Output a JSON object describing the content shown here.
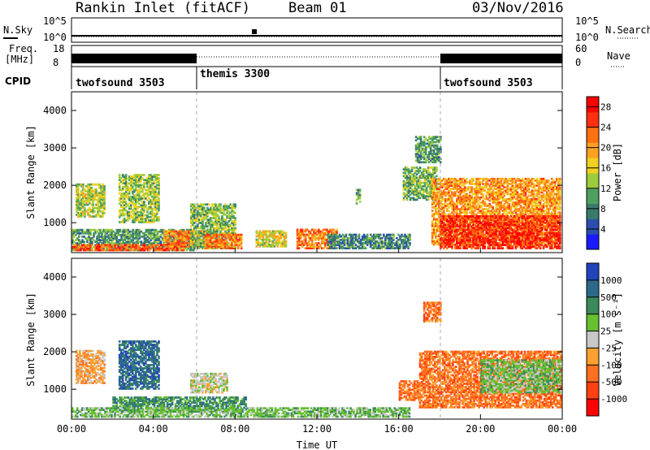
{
  "header": {
    "title": "Rankin Inlet (fitACF)",
    "beam": "Beam 01",
    "date": "03/Nov/2016"
  },
  "noise_panel": {
    "left_label": "N.Sky",
    "right_label": "N.Search",
    "ticks": [
      "10^0",
      "10^5"
    ]
  },
  "freq_panel": {
    "left_label_1": "Freq.",
    "left_label_2": "[MHz]",
    "right_label": "Nave",
    "left_ticks": [
      "8",
      "18"
    ],
    "right_ticks": [
      "0",
      "60"
    ]
  },
  "cpid": {
    "label": "CPID",
    "modes": [
      "twofsound 3503",
      "themis 3300",
      "twofsound 3503"
    ],
    "mode_start_hours": [
      0,
      6,
      18
    ]
  },
  "chart_data": [
    {
      "type": "heatmap",
      "quantity": "power",
      "xlabel": "",
      "ylabel": "Slant Range [km]",
      "x_ticks": [
        "00:00",
        "04:00",
        "08:00",
        "12:00",
        "16:00",
        "20:00",
        "00:00"
      ],
      "xlim_hours": [
        0,
        24
      ],
      "y_ticks": [
        1000,
        2000,
        3000,
        4000
      ],
      "ylim": [
        200,
        4500
      ],
      "colorbar": {
        "label": "Power [dB]",
        "ticks": [
          4,
          8,
          12,
          16,
          20,
          24,
          28
        ],
        "range": [
          0,
          30
        ],
        "colors": [
          "#1a1aff",
          "#2b4fb0",
          "#3a7a6a",
          "#4fa060",
          "#9ccc3c",
          "#f0d020",
          "#ffa020",
          "#ff7010",
          "#ff3010",
          "#ff0000"
        ]
      },
      "echo_regions": [
        {
          "t0": 0.2,
          "t1": 1.6,
          "r0": 1150,
          "r1": 2050,
          "level": 14
        },
        {
          "t0": 2.3,
          "t1": 4.3,
          "r0": 1000,
          "r1": 2300,
          "level": 13
        },
        {
          "t0": 0.0,
          "t1": 6.0,
          "r0": 250,
          "r1": 800,
          "level": 10
        },
        {
          "t0": 0.0,
          "t1": 5.5,
          "r0": 250,
          "r1": 400,
          "level": 24
        },
        {
          "t0": 4.5,
          "t1": 6.8,
          "r0": 350,
          "r1": 800,
          "level": 22
        },
        {
          "t0": 5.8,
          "t1": 8.0,
          "r0": 300,
          "r1": 1500,
          "level": 12
        },
        {
          "t0": 6.5,
          "t1": 8.3,
          "r0": 300,
          "r1": 700,
          "level": 22
        },
        {
          "t0": 9.0,
          "t1": 10.5,
          "r0": 350,
          "r1": 800,
          "level": 16
        },
        {
          "t0": 11.0,
          "t1": 13.0,
          "r0": 300,
          "r1": 800,
          "level": 22
        },
        {
          "t0": 12.5,
          "t1": 16.5,
          "r0": 300,
          "r1": 700,
          "level": 8
        },
        {
          "t0": 13.9,
          "t1": 14.1,
          "r0": 1500,
          "r1": 1900,
          "level": 10
        },
        {
          "t0": 16.2,
          "t1": 17.8,
          "r0": 1600,
          "r1": 2500,
          "level": 12
        },
        {
          "t0": 16.8,
          "t1": 18.0,
          "r0": 2600,
          "r1": 3300,
          "level": 10
        },
        {
          "t0": 17.6,
          "t1": 23.9,
          "r0": 400,
          "r1": 2200,
          "level": 20
        },
        {
          "t0": 18.0,
          "t1": 23.9,
          "r0": 300,
          "r1": 1200,
          "level": 26
        }
      ]
    },
    {
      "type": "heatmap",
      "quantity": "velocity",
      "xlabel": "Time UT",
      "ylabel": "Slant Range [km]",
      "x_ticks": [
        "00:00",
        "04:00",
        "08:00",
        "12:00",
        "16:00",
        "20:00",
        "00:00"
      ],
      "xlim_hours": [
        0,
        24
      ],
      "y_ticks": [
        1000,
        2000,
        3000,
        4000
      ],
      "ylim": [
        200,
        4500
      ],
      "colorbar": {
        "label": "Velocity [m s⁻¹]",
        "ticks": [
          "1000",
          "500",
          "100",
          "25",
          "-25",
          "-100",
          "-500",
          "-1000"
        ],
        "colors": [
          "#2244bb",
          "#2d6a8a",
          "#3a8a5a",
          "#66c030",
          "#c8c8c8",
          "#ffa030",
          "#ff7020",
          "#ff4010",
          "#ff0000"
        ]
      },
      "echo_regions": [
        {
          "t0": 0.2,
          "t1": 1.6,
          "r0": 1150,
          "r1": 2050,
          "level": 5
        },
        {
          "t0": 2.3,
          "t1": 4.3,
          "r0": 1000,
          "r1": 2300,
          "level": 1
        },
        {
          "t0": 5.8,
          "t1": 7.6,
          "r0": 900,
          "r1": 1400,
          "level": 4
        },
        {
          "t0": 2.0,
          "t1": 8.5,
          "r0": 400,
          "r1": 800,
          "level": 2
        },
        {
          "t0": 0.0,
          "t1": 16.5,
          "r0": 250,
          "r1": 500,
          "level": 3
        },
        {
          "t0": 16.0,
          "t1": 17.0,
          "r0": 700,
          "r1": 1200,
          "level": 6
        },
        {
          "t0": 17.0,
          "t1": 23.9,
          "r0": 500,
          "r1": 2000,
          "level": 6
        },
        {
          "t0": 17.2,
          "t1": 18.0,
          "r0": 2800,
          "r1": 3300,
          "level": 6
        },
        {
          "t0": 20.0,
          "t1": 23.9,
          "r0": 900,
          "r1": 1800,
          "level": 3
        }
      ]
    }
  ]
}
